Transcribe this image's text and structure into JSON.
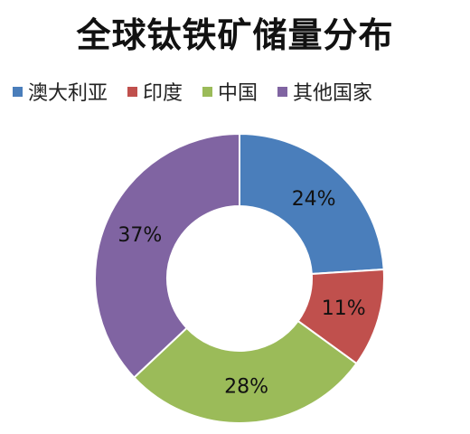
{
  "chart_data": {
    "type": "pie",
    "variant": "donut",
    "title": "全球钛铁矿储量分布",
    "categories": [
      "澳大利亚",
      "印度",
      "中国",
      "其他国家"
    ],
    "values": [
      24,
      11,
      28,
      37
    ],
    "value_labels": [
      "24%",
      "11%",
      "28%",
      "37%"
    ],
    "colors": [
      "#4A7EBB",
      "#C0504D",
      "#9BBB59",
      "#8064A2"
    ],
    "legend_position": "top",
    "start_angle": "12 o'clock",
    "direction": "clockwise"
  }
}
